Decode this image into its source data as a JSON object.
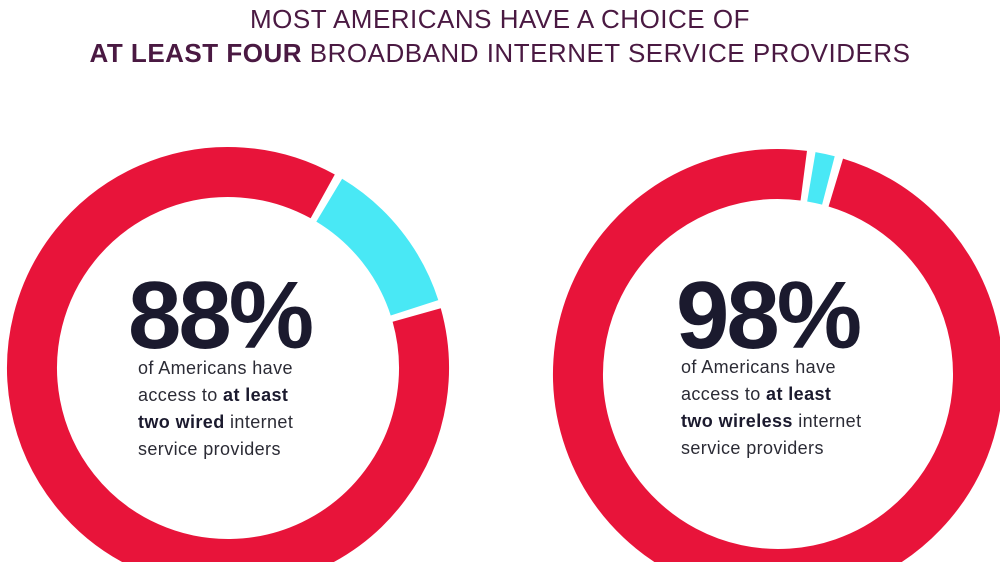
{
  "title": {
    "line1": "MOST AMERICANS HAVE A CHOICE OF",
    "line2_bold": "AT LEAST FOUR",
    "line2_rest": " BROADBAND INTERNET SERVICE PROVIDERS"
  },
  "colors": {
    "primary": "#e8143a",
    "secondary": "#49e8f5",
    "title": "#4a1942"
  },
  "chart_data": [
    {
      "type": "pie",
      "title": "",
      "values": [
        88,
        12
      ],
      "label": "88%",
      "desc": {
        "l1": "of Americans have",
        "l2a": "access to ",
        "l2b": "at least",
        "l3a": "two wired",
        "l3b": " internet",
        "l4": "service providers"
      }
    },
    {
      "type": "pie",
      "title": "",
      "values": [
        98,
        2
      ],
      "label": "98%",
      "desc": {
        "l1": "of Americans have",
        "l2a": "access to ",
        "l2b": "at least",
        "l3a": "two wireless",
        "l3b": " internet",
        "l4": "service providers"
      }
    }
  ]
}
